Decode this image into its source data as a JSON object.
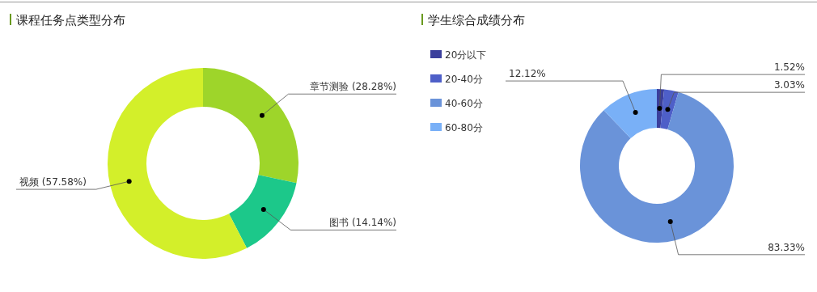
{
  "chart_data": [
    {
      "type": "donut",
      "title": "课程任务点类型分布",
      "categories": [
        "章节测验",
        "图书",
        "视频"
      ],
      "values": [
        28.28,
        14.14,
        57.58
      ],
      "colors": [
        "#9ed52a",
        "#1cc88a",
        "#d3ef2a"
      ],
      "value_labels": [
        "(28.28%)",
        "(14.14%)",
        "(57.58%)"
      ]
    },
    {
      "type": "donut",
      "title": "学生综合成绩分布",
      "categories": [
        "20分以下",
        "20-40分",
        "40-60分",
        "60-80分"
      ],
      "values": [
        1.52,
        3.03,
        83.33,
        12.12
      ],
      "colors": [
        "#3b3f9c",
        "#4e5fc8",
        "#6a93d9",
        "#79b0f7"
      ],
      "value_labels": [
        "1.52%",
        "3.03%",
        "83.33%",
        "12.12%"
      ],
      "legend": "top left"
    }
  ]
}
